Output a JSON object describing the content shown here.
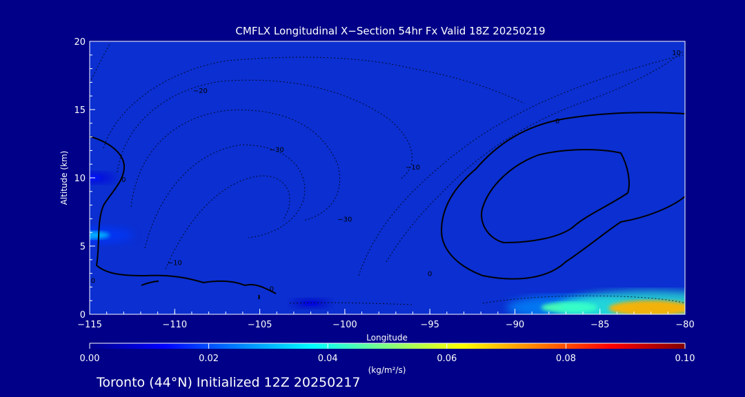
{
  "chart_data": {
    "type": "heatmap",
    "title": "CMFLX Longitudinal X−Section 54hr  Fx Valid 18Z 20250219",
    "xlabel": "Longitude",
    "ylabel": "Altitude (km)",
    "xlim": [
      -115,
      -80
    ],
    "ylim": [
      0,
      20
    ],
    "x_ticks": [
      -115,
      -110,
      -105,
      -100,
      -95,
      -90,
      -85,
      -80
    ],
    "x_tick_labels": [
      "−115",
      "−110",
      "−105",
      "−100",
      "−95",
      "−90",
      "−85",
      "−80"
    ],
    "y_ticks": [
      0,
      5,
      10,
      15,
      20
    ],
    "y_tick_labels": [
      "0",
      "5",
      "10",
      "15",
      "20"
    ],
    "colorbar": {
      "min": 0.0,
      "max": 0.1,
      "ticks": [
        "0.00",
        "0.02",
        "0.04",
        "0.06",
        "0.08",
        "0.10"
      ],
      "units": "(kg/m²/s)"
    },
    "hotspots": [
      {
        "lon": -115,
        "alt": 10.0,
        "value": 0.015
      },
      {
        "lon": -115,
        "alt": 5.8,
        "value": 0.03
      },
      {
        "lon": -86.8,
        "alt": 0.5,
        "value": 0.045
      },
      {
        "lon": -82.0,
        "alt": 0.45,
        "value": 0.07
      },
      {
        "lon": -102,
        "alt": 0.8,
        "value": 0.01
      }
    ],
    "contour_labels": [
      {
        "text": "−20",
        "lon": -108.5,
        "alt": 16.2
      },
      {
        "text": "−30",
        "lon": -104.0,
        "alt": 11.9
      },
      {
        "text": "−30",
        "lon": -100.0,
        "alt": 6.8
      },
      {
        "text": "−10",
        "lon": -110.0,
        "alt": 3.6
      },
      {
        "text": "−10",
        "lon": -96.0,
        "alt": 10.6
      },
      {
        "text": "10",
        "lon": -80.5,
        "alt": 19.0
      },
      {
        "text": "0",
        "lon": -87.5,
        "alt": 14.0
      },
      {
        "text": "0",
        "lon": -113.0,
        "alt": 9.7
      },
      {
        "text": "0",
        "lon": -95.0,
        "alt": 2.8
      },
      {
        "text": "0",
        "lon": -104.3,
        "alt": 1.7
      },
      {
        "text": "0",
        "lon": -114.8,
        "alt": 2.3
      }
    ]
  },
  "footer": "Toronto (44°N) Initialized 12Z 20250217"
}
